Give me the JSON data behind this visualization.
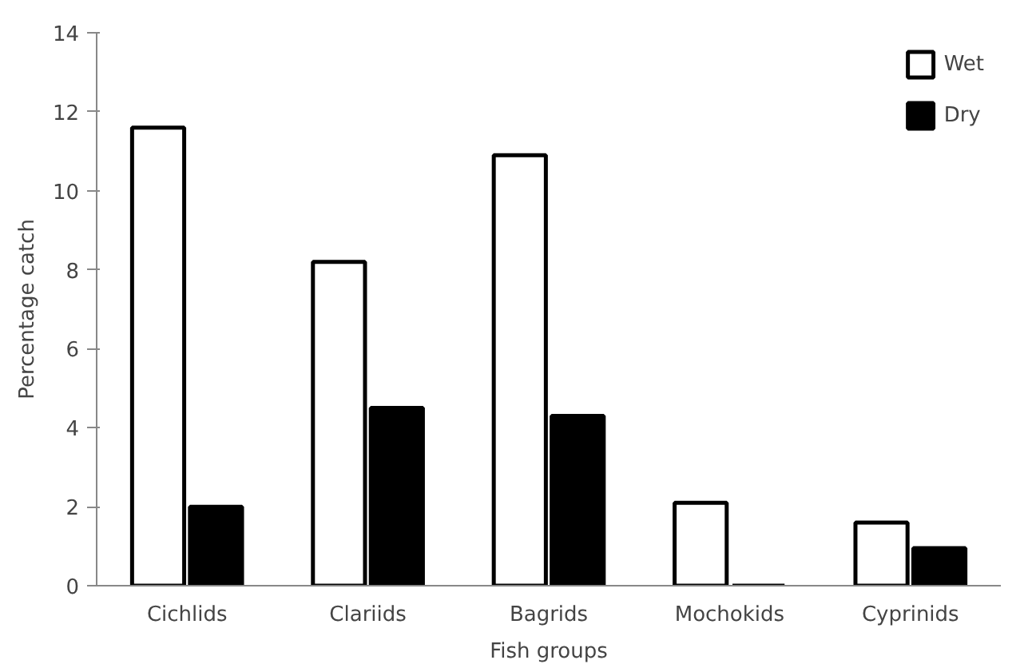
{
  "chart_data": {
    "type": "bar",
    "xlabel": "Fish groups",
    "ylabel": "Percentage catch",
    "categories": [
      "Cichlids",
      "Clariids",
      "Bagrids",
      "Mochokids",
      "Cyprinids"
    ],
    "series": [
      {
        "name": "Wet",
        "color": "#ffffff",
        "values": [
          11.6,
          8.2,
          10.9,
          2.1,
          1.6
        ]
      },
      {
        "name": "Dry",
        "color": "#000000",
        "values": [
          2.0,
          4.5,
          4.3,
          0,
          0.95
        ]
      }
    ],
    "ylim": [
      0,
      14
    ],
    "yticks": [
      0,
      2,
      4,
      6,
      8,
      10,
      12,
      14
    ],
    "grid": false,
    "legend": "top right"
  }
}
